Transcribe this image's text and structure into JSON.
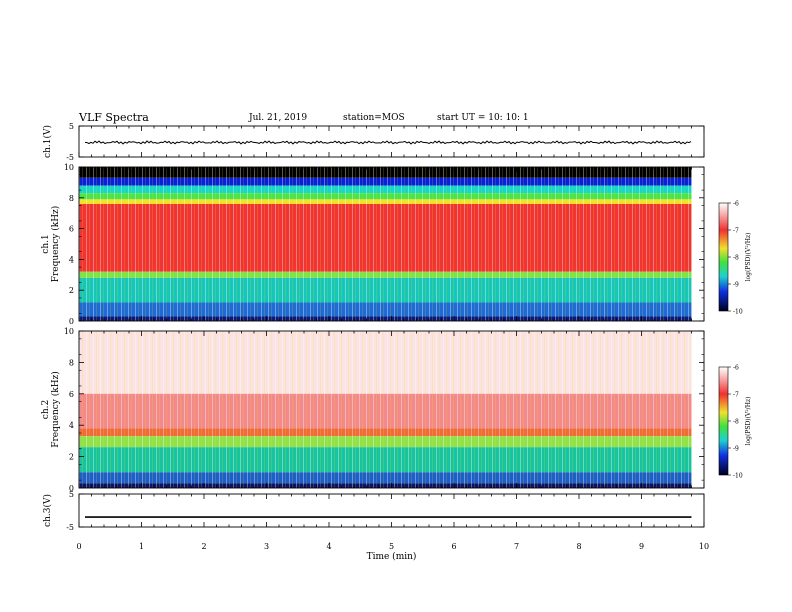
{
  "header": {
    "title": "VLF Spectra",
    "date": "Jul. 21, 2019",
    "station": "station=MOS",
    "start": "start UT =  10: 10: 1"
  },
  "chart_data": [
    {
      "type": "line",
      "name": "ch1-waveform",
      "ylabel": "ch.1(V)",
      "yticks": [
        "5",
        "-5"
      ],
      "ylim": [
        -5,
        5
      ],
      "baseline": -0.3
    },
    {
      "type": "heatmap",
      "name": "ch1-spectrogram",
      "ylabel_line1": "ch.1",
      "ylabel_line2": "Frequency  (kHz)",
      "yticks": [
        "0",
        "2",
        "4",
        "6",
        "8",
        "10"
      ],
      "ylim": [
        0,
        10
      ],
      "colorbar_label": "log(PSD)(V²/Hz)",
      "colorbar_ticks": [
        "-6",
        "-7",
        "-8",
        "-9",
        "-10"
      ],
      "bands": [
        {
          "from": 9.3,
          "to": 10.0,
          "color": "#000000"
        },
        {
          "from": 8.8,
          "to": 9.3,
          "color": "#0a1fd8"
        },
        {
          "from": 8.3,
          "to": 8.8,
          "color": "#16d6c8"
        },
        {
          "from": 7.9,
          "to": 8.3,
          "color": "#49e34a"
        },
        {
          "from": 7.6,
          "to": 7.9,
          "color": "#f2e22a"
        },
        {
          "from": 3.2,
          "to": 7.6,
          "color": "#f03434"
        },
        {
          "from": 2.8,
          "to": 3.2,
          "color": "#7fe24b"
        },
        {
          "from": 1.2,
          "to": 2.8,
          "color": "#16c6b8"
        },
        {
          "from": 0.3,
          "to": 1.2,
          "color": "#1e6bd6"
        },
        {
          "from": 0.0,
          "to": 0.3,
          "color": "#0a1a7a"
        }
      ]
    },
    {
      "type": "heatmap",
      "name": "ch2-spectrogram",
      "ylabel_line1": "ch.2",
      "ylabel_line2": "Frequency  (kHz)",
      "yticks": [
        "0",
        "2",
        "4",
        "6",
        "8",
        "10"
      ],
      "ylim": [
        0,
        10
      ],
      "colorbar_label": "log(PSD)(V²/Hz)",
      "colorbar_ticks": [
        "-6",
        "-7",
        "-8",
        "-9",
        "-10"
      ],
      "bands": [
        {
          "from": 6.0,
          "to": 10.0,
          "color": "#fbe3e3"
        },
        {
          "from": 3.8,
          "to": 6.0,
          "color": "#f28a8a"
        },
        {
          "from": 3.3,
          "to": 3.8,
          "color": "#f06a3a"
        },
        {
          "from": 2.6,
          "to": 3.3,
          "color": "#8fe24b"
        },
        {
          "from": 1.0,
          "to": 2.6,
          "color": "#18c4a0"
        },
        {
          "from": 0.3,
          "to": 1.0,
          "color": "#1d5fc8"
        },
        {
          "from": 0.0,
          "to": 0.3,
          "color": "#0b1466"
        }
      ]
    },
    {
      "type": "line",
      "name": "ch3-waveform",
      "ylabel": "ch.3(V)",
      "yticks": [
        "5",
        "-5"
      ],
      "ylim": [
        -5,
        5
      ],
      "baseline": -2.0
    }
  ],
  "xaxis": {
    "label": "Time  (min)",
    "ticks": [
      "0",
      "1",
      "2",
      "3",
      "4",
      "5",
      "6",
      "7",
      "8",
      "9",
      "10"
    ],
    "xlim": [
      0,
      10
    ],
    "data_end": 9.8
  },
  "colors": {
    "axis": "#000000",
    "background": "#ffffff"
  }
}
